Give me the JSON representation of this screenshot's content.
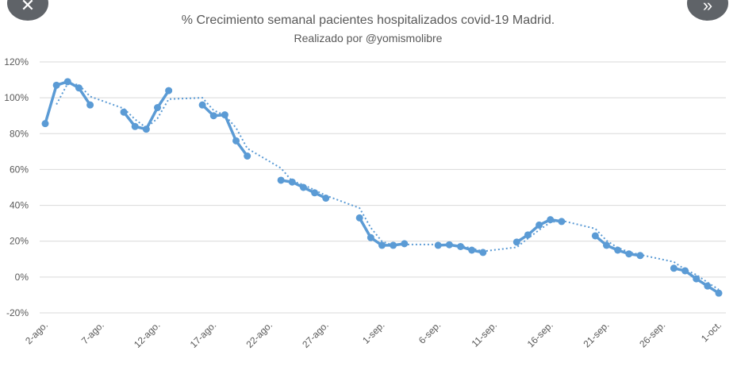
{
  "nav": {
    "prev_icon": "close-icon",
    "prev_glyph": "✕",
    "next_icon": "double-chevron-right-icon",
    "next_glyph": "»"
  },
  "chart_data": {
    "type": "line",
    "title": "% Crecimiento semanal pacientes hospitalizados covid-19 Madrid.",
    "subtitle": "Realizado por @yomismolibre",
    "xlabel": "",
    "ylabel": "",
    "ylim": [
      -20,
      120
    ],
    "yticks": [
      -20,
      0,
      20,
      40,
      60,
      80,
      100,
      120
    ],
    "ytick_labels": [
      "-20%",
      "0%",
      "20%",
      "40%",
      "60%",
      "80%",
      "100%",
      "120%"
    ],
    "xlim_days": [
      0,
      60
    ],
    "xtick_days": [
      0,
      5,
      10,
      15,
      20,
      25,
      30,
      35,
      40,
      45,
      50,
      55,
      60
    ],
    "xtick_labels": [
      "2-ago.",
      "7-ago.",
      "12-ago.",
      "17-ago.",
      "22-ago.",
      "27-ago.",
      "1-sep.",
      "6-sep.",
      "11-sep.",
      "16-sep.",
      "21-sep.",
      "26-sep.",
      "1-oct."
    ],
    "grid": true,
    "color": "#5b9bd5",
    "series": [
      {
        "name": "% crecimiento semanal",
        "day": [
          0,
          1,
          2,
          3,
          4,
          7,
          8,
          9,
          10,
          11,
          14,
          15,
          16,
          17,
          18,
          21,
          22,
          23,
          24,
          25,
          28,
          29,
          30,
          31,
          32,
          35,
          36,
          37,
          38,
          39,
          42,
          43,
          44,
          45,
          46,
          49,
          50,
          51,
          52,
          53,
          56,
          57,
          58,
          59,
          60
        ],
        "values": [
          85.6,
          107,
          109,
          105.5,
          96,
          92,
          84,
          82.5,
          94.5,
          104,
          96,
          90,
          90.5,
          76,
          67.5,
          54,
          53,
          50,
          47,
          44,
          33,
          22,
          17.7,
          17.7,
          18.6,
          17.7,
          18,
          17,
          15,
          13.7,
          19.5,
          23.5,
          29,
          32,
          31,
          23,
          17.7,
          15,
          12.9,
          12,
          4.9,
          3.5,
          -1,
          -5,
          -9
        ]
      }
    ],
    "trendline": "2-period moving average (dotted)"
  }
}
